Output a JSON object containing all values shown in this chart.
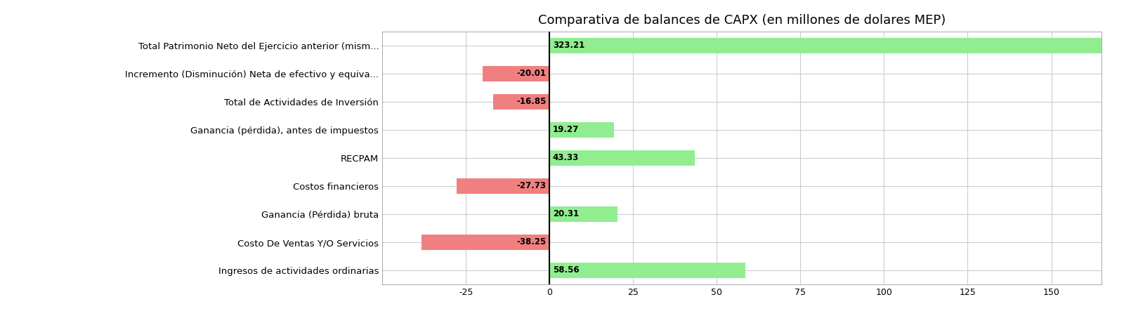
{
  "title": "Comparativa de balances de CAPX (en millones de dolares MEP)",
  "categories": [
    "Ingresos de actividades ordinarias",
    "Costo De Ventas Y/O Servicios",
    "Ganancia (Pérdida) bruta",
    "Costos financieros",
    "RECPAM",
    "Ganancia (pérdida), antes de impuestos",
    "Total de Actividades de Inversión",
    "Incremento (Disminución) Neta de efectivo y equiva...",
    "Total Patrimonio Neto del Ejercicio anterior (mism..."
  ],
  "values": [
    58.56,
    -38.25,
    20.31,
    -27.73,
    43.33,
    19.27,
    -16.85,
    -20.01,
    323.21
  ],
  "positive_color": "#90EE90",
  "negative_color": "#F08080",
  "background_color": "#ffffff",
  "grid_color": "#cccccc",
  "xlim": [
    -50,
    165
  ],
  "xticks": [
    -25,
    0,
    25,
    50,
    75,
    100,
    125,
    150
  ],
  "bar_height": 0.55,
  "title_fontsize": 13,
  "label_fontsize": 9.5,
  "tick_fontsize": 9,
  "value_fontsize": 8.5
}
